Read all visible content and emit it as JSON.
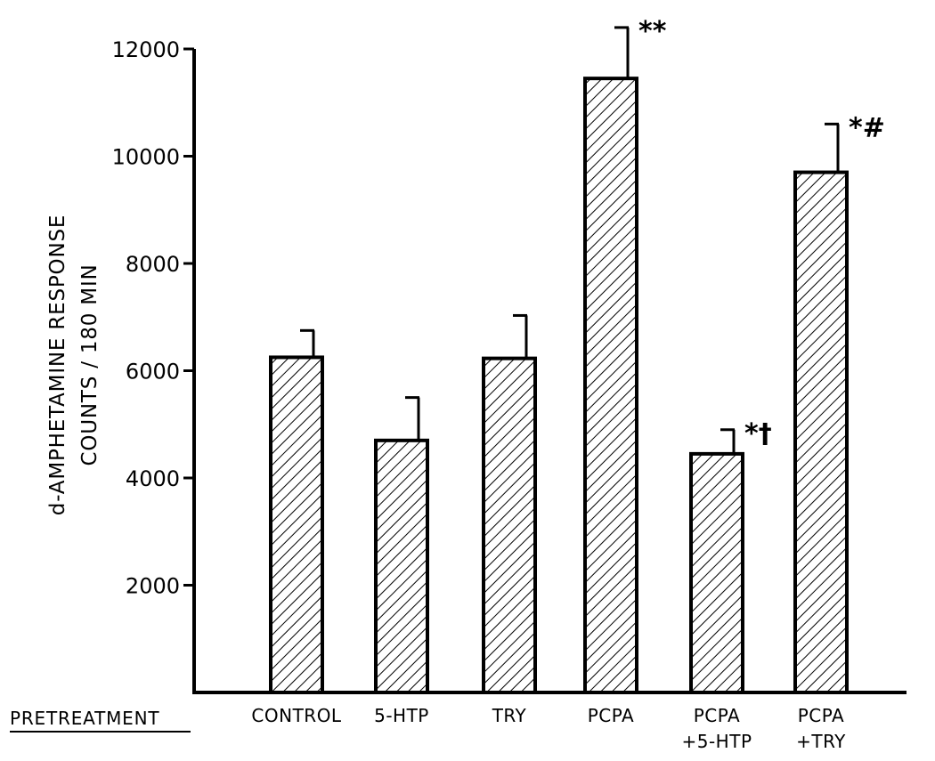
{
  "chart_data": {
    "type": "bar",
    "row_label": "PRETREATMENT",
    "ylabel_line1": "d-AMPHETAMINE  RESPONSE",
    "ylabel_line2": "COUNTS / 180 MIN",
    "ylim": [
      0,
      12000
    ],
    "yticks": [
      "2000",
      "4000",
      "6000",
      "8000",
      "10000",
      "12000"
    ],
    "categories": [
      {
        "line1": "CONTROL",
        "line2": "",
        "value": 6250,
        "error": 500,
        "mark": ""
      },
      {
        "line1": "5-HTP",
        "line2": "",
        "value": 4700,
        "error": 800,
        "mark": ""
      },
      {
        "line1": "TRY",
        "line2": "",
        "value": 6230,
        "error": 800,
        "mark": ""
      },
      {
        "line1": "PCPA",
        "line2": "",
        "value": 11450,
        "error": 950,
        "mark": "**"
      },
      {
        "line1": "PCPA",
        "line2": "+5-HTP",
        "value": 4450,
        "error": 450,
        "mark": "*†"
      },
      {
        "line1": "PCPA",
        "line2": "+TRY",
        "value": 9700,
        "error": 900,
        "mark": "*#"
      }
    ],
    "grid": false,
    "legend": "none"
  }
}
